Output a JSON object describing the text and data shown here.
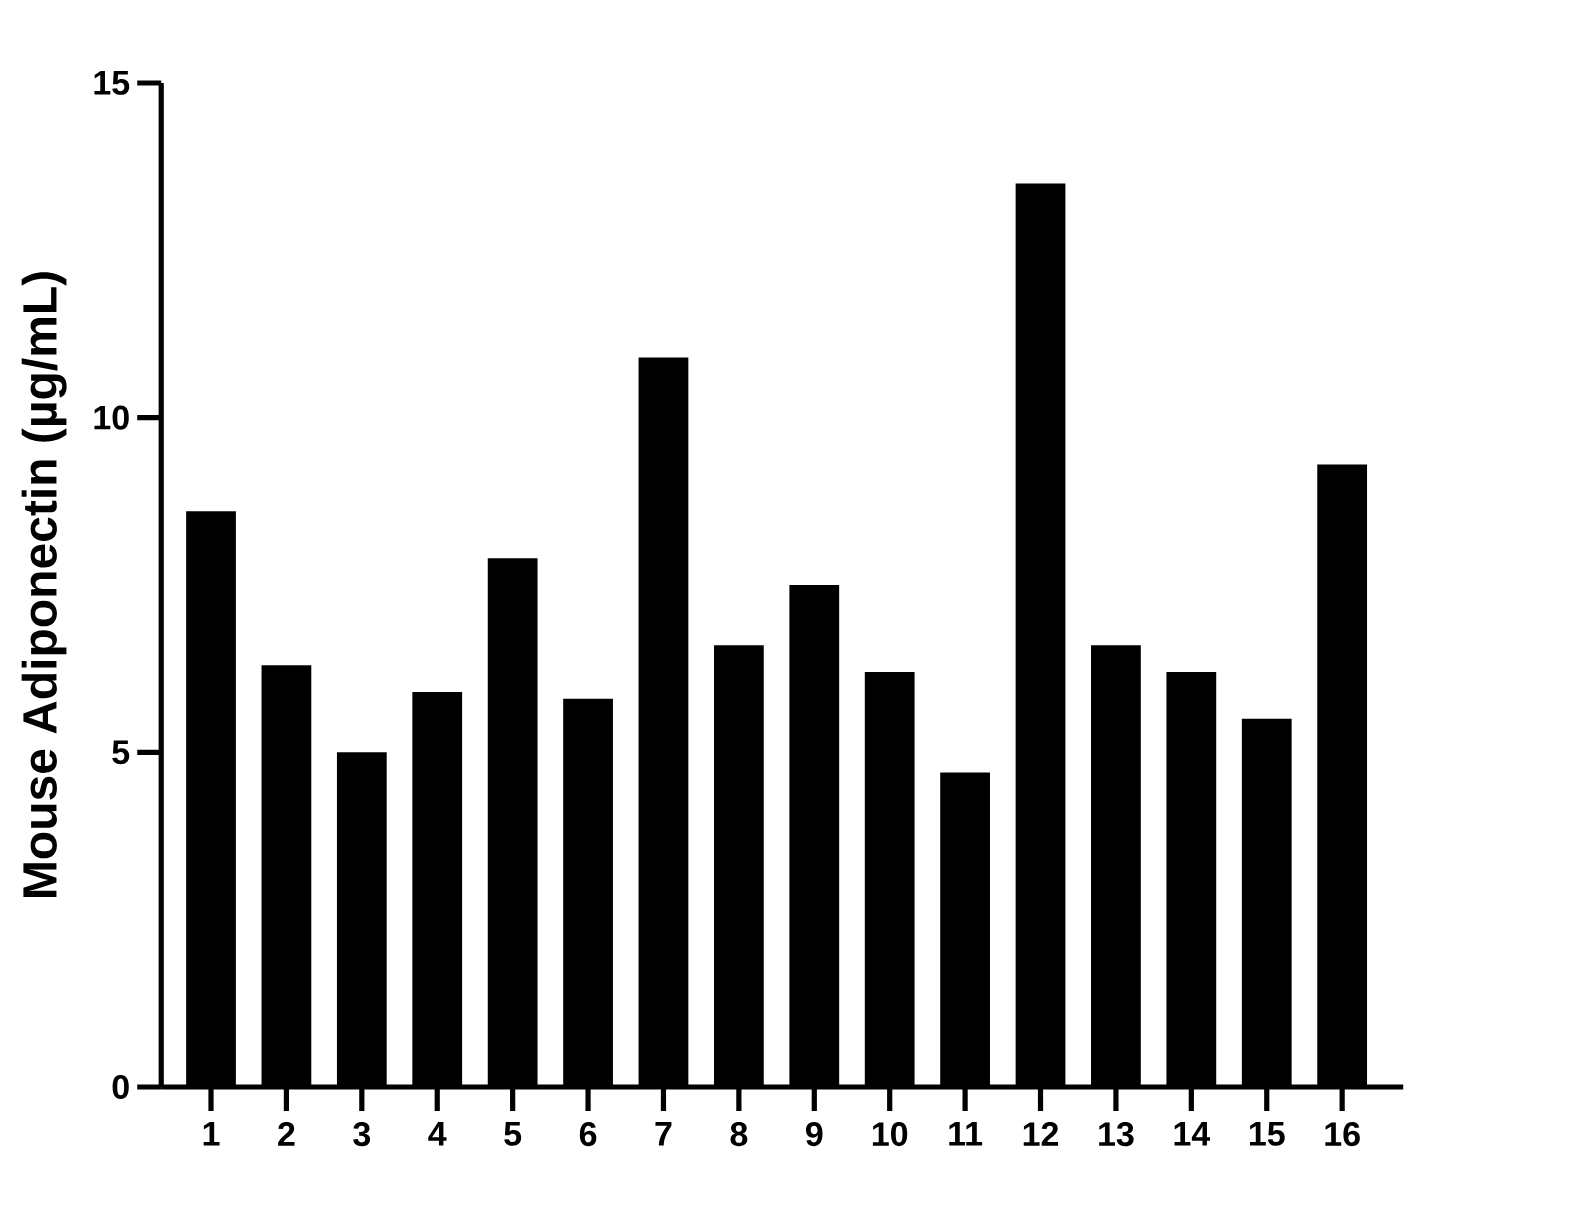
{
  "chart_data": {
    "type": "bar",
    "ylabel": "Mouse Adiponectin (µg/mL)",
    "categories": [
      "1",
      "2",
      "3",
      "4",
      "5",
      "6",
      "7",
      "8",
      "9",
      "10",
      "11",
      "12",
      "13",
      "14",
      "15",
      "16"
    ],
    "values": [
      8.6,
      6.3,
      5.0,
      5.9,
      7.9,
      5.8,
      10.9,
      6.6,
      7.5,
      6.2,
      4.7,
      13.5,
      6.6,
      6.2,
      5.5,
      9.3
    ],
    "color": "#000000",
    "ylim": [
      0,
      15
    ],
    "yticks": [
      0,
      5,
      10,
      15
    ],
    "grid": false
  }
}
